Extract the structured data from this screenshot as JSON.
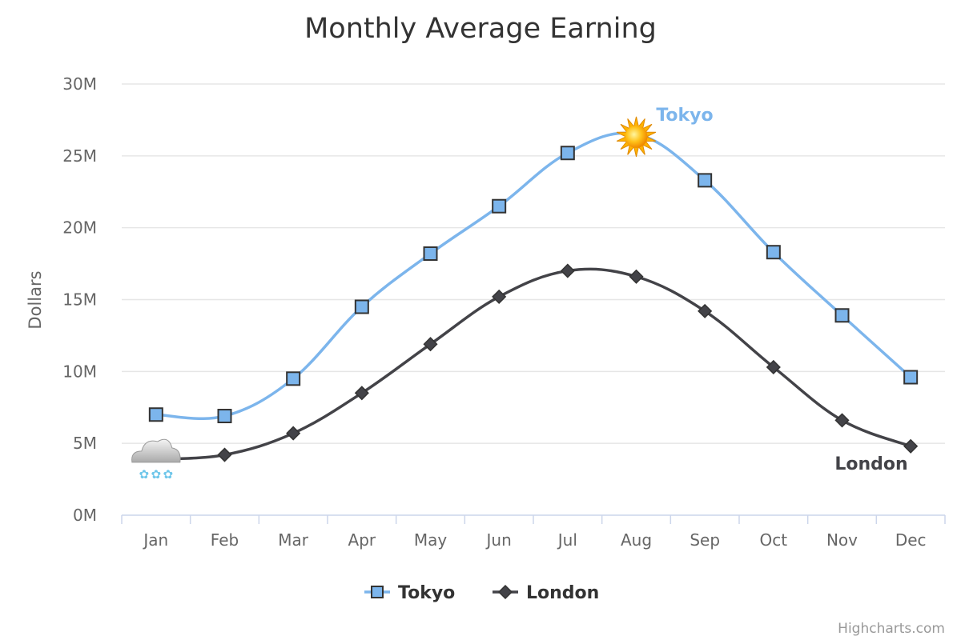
{
  "chart_data": {
    "type": "line",
    "title": "Monthly Average Earning",
    "ylabel": "Dollars",
    "xlabel": "",
    "categories": [
      "Jan",
      "Feb",
      "Mar",
      "Apr",
      "May",
      "Jun",
      "Jul",
      "Aug",
      "Sep",
      "Oct",
      "Nov",
      "Dec"
    ],
    "ylim": [
      0,
      30000000
    ],
    "yticks": [
      0,
      5000000,
      10000000,
      15000000,
      20000000,
      25000000,
      30000000
    ],
    "ytick_labels": [
      "0M",
      "5M",
      "10M",
      "15M",
      "20M",
      "25M",
      "30M"
    ],
    "grid": true,
    "legend_position": "bottom-center",
    "curve": "smooth",
    "series": [
      {
        "name": "Tokyo",
        "color": "#7cb5ec",
        "marker": "square",
        "values": [
          7000000,
          6900000,
          9500000,
          14500000,
          18200000,
          21500000,
          25200000,
          26500000,
          23300000,
          18300000,
          13900000,
          9600000
        ],
        "end_label": "Tokyo",
        "special_marker": {
          "index": 7,
          "icon": "sun-icon"
        }
      },
      {
        "name": "London",
        "color": "#434348",
        "marker": "diamond",
        "values": [
          3900000,
          4200000,
          5700000,
          8500000,
          11900000,
          15200000,
          17000000,
          16600000,
          14200000,
          10300000,
          6600000,
          4800000
        ],
        "end_label": "London",
        "special_marker": {
          "index": 0,
          "icon": "snow-cloud-icon"
        }
      }
    ],
    "credits": "Highcharts.com"
  }
}
